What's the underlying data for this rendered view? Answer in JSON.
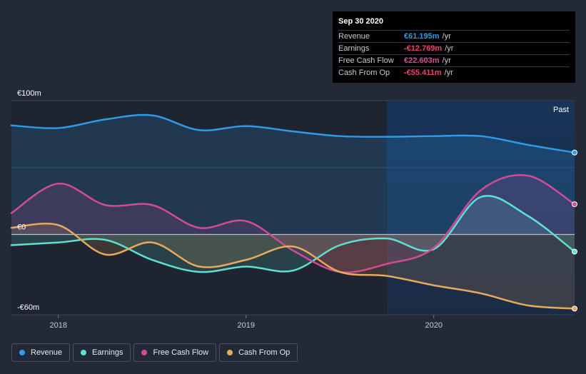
{
  "tooltip": {
    "date": "Sep 30 2020",
    "rows": [
      {
        "label": "Revenue",
        "value": "€61.195m",
        "unit": "/yr",
        "color": "#2f9be8"
      },
      {
        "label": "Earnings",
        "value": "-€12.769m",
        "unit": "/yr",
        "color": "#e8466f"
      },
      {
        "label": "Free Cash Flow",
        "value": "€22.603m",
        "unit": "/yr",
        "color": "#d84e9a"
      },
      {
        "label": "Cash From Op",
        "value": "-€55.411m",
        "unit": "/yr",
        "color": "#e8466f"
      }
    ]
  },
  "legend": [
    {
      "label": "Revenue",
      "color": "#2f9be8"
    },
    {
      "label": "Earnings",
      "color": "#5ee0d2"
    },
    {
      "label": "Free Cash Flow",
      "color": "#d14b97"
    },
    {
      "label": "Cash From Op",
      "color": "#e8a95d"
    }
  ],
  "chart_data": {
    "type": "area",
    "title": "",
    "xlabel": "",
    "ylabel": "",
    "ylim": [
      -60,
      100
    ],
    "y_tick_labels": [
      {
        "value": 100,
        "label": "€100m"
      },
      {
        "value": 0,
        "label": "€0"
      },
      {
        "value": -60,
        "label": "-€60m"
      }
    ],
    "x_ticks": [
      {
        "value": 2018.0,
        "label": "2018"
      },
      {
        "value": 2019.0,
        "label": "2019"
      },
      {
        "value": 2020.0,
        "label": "2020"
      }
    ],
    "xlim": [
      2017.75,
      2020.75
    ],
    "past_start": 2019.75,
    "past_label": "Past",
    "series": [
      {
        "name": "Revenue",
        "color": "#2f9be8",
        "x": [
          2017.75,
          2018.0,
          2018.25,
          2018.5,
          2018.75,
          2019.0,
          2019.25,
          2019.5,
          2019.75,
          2020.0,
          2020.25,
          2020.5,
          2020.75
        ],
        "values": [
          81.5,
          79.5,
          86.0,
          89.0,
          78.0,
          81.0,
          77.0,
          73.5,
          73.0,
          73.5,
          73.5,
          67.0,
          61.2
        ]
      },
      {
        "name": "Earnings",
        "color": "#5ee0d2",
        "x": [
          2017.75,
          2018.0,
          2018.25,
          2018.5,
          2018.75,
          2019.0,
          2019.25,
          2019.5,
          2019.75,
          2020.0,
          2020.25,
          2020.5,
          2020.75
        ],
        "values": [
          -8.0,
          -6.0,
          -4.0,
          -19.0,
          -28.0,
          -24.0,
          -27.0,
          -8.0,
          -3.0,
          -11.0,
          28.0,
          14.0,
          -12.8
        ]
      },
      {
        "name": "Free Cash Flow",
        "color": "#d14b97",
        "x": [
          2017.75,
          2018.0,
          2018.25,
          2018.5,
          2018.75,
          2019.0,
          2019.25,
          2019.5,
          2019.75,
          2020.0,
          2020.25,
          2020.5,
          2020.75
        ],
        "values": [
          16.0,
          38.0,
          22.0,
          22.0,
          5.0,
          10.0,
          -12.0,
          -28.0,
          -22.0,
          -10.0,
          33.0,
          44.0,
          22.6
        ]
      },
      {
        "name": "Cash From Op",
        "color": "#e8a95d",
        "x": [
          2017.75,
          2018.0,
          2018.25,
          2018.5,
          2018.75,
          2019.0,
          2019.25,
          2019.5,
          2019.75,
          2020.0,
          2020.25,
          2020.5,
          2020.75
        ],
        "values": [
          5.0,
          7.0,
          -15.0,
          -6.0,
          -24.0,
          -19.0,
          -9.0,
          -28.0,
          -31.0,
          -38.0,
          -44.0,
          -53.0,
          -55.4
        ]
      }
    ]
  }
}
